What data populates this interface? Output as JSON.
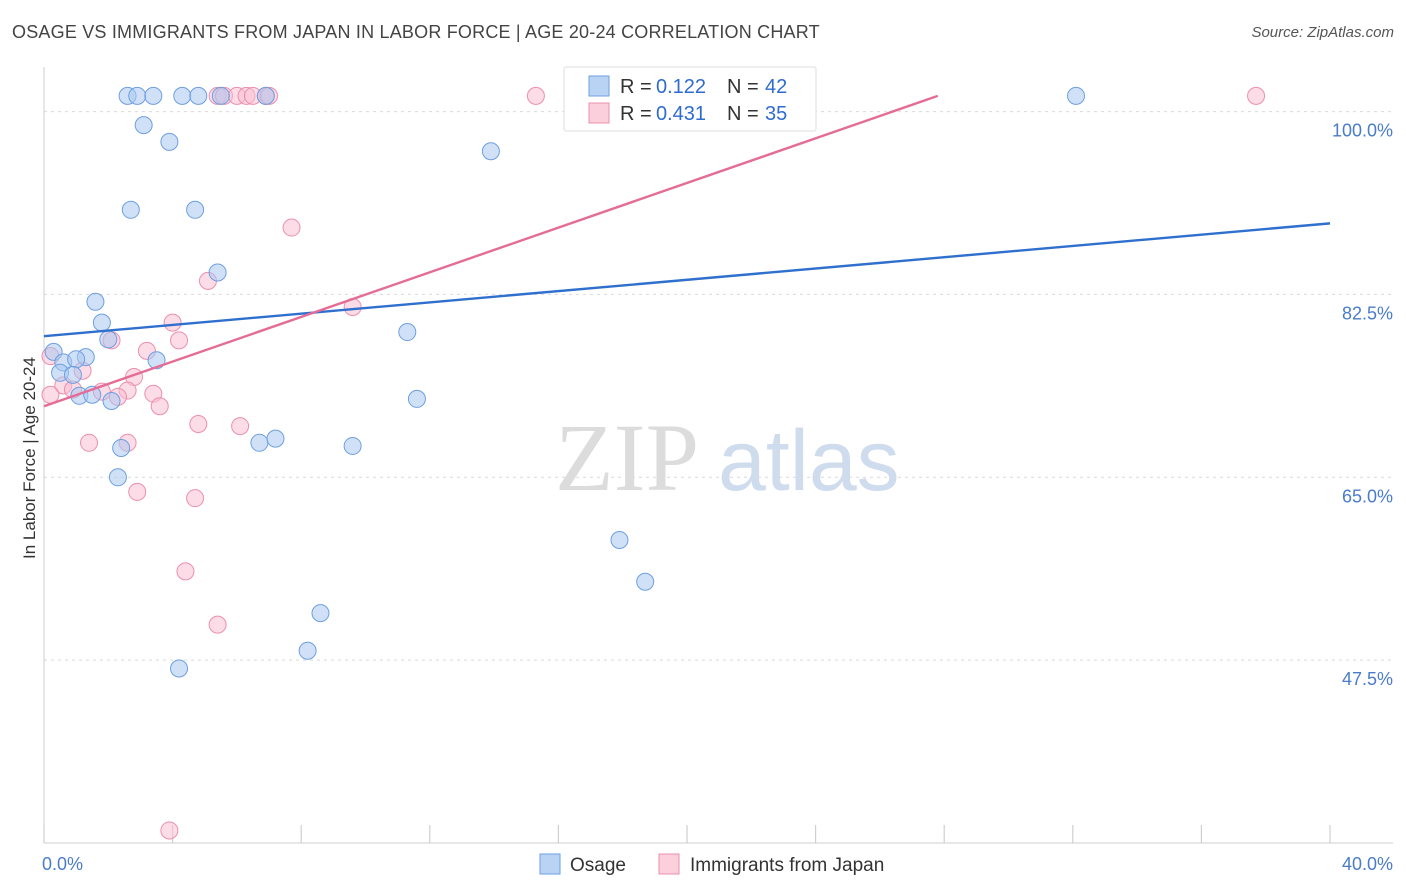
{
  "title": "OSAGE VS IMMIGRANTS FROM JAPAN IN LABOR FORCE | AGE 20-24 CORRELATION CHART",
  "source": "Source: ZipAtlas.com",
  "watermark": {
    "zip": "ZIP",
    "atlas": "atlas"
  },
  "chart_data": {
    "type": "scatter",
    "title": "OSAGE VS IMMIGRANTS FROM JAPAN IN LABOR FORCE | AGE 20-24 CORRELATION CHART",
    "xlabel": "",
    "ylabel": "In Labor Force | Age 20-24",
    "xlim": [
      0,
      40
    ],
    "ylim": [
      30,
      103.5
    ],
    "x_tick_labels": {
      "min": "0.0%",
      "max": "40.0%"
    },
    "y_ticks": [
      {
        "value": 47.5,
        "label": "47.5%"
      },
      {
        "value": 65.0,
        "label": "65.0%"
      },
      {
        "value": 82.5,
        "label": "82.5%"
      },
      {
        "value": 100.0,
        "label": "100.0%"
      }
    ],
    "series": [
      {
        "name": "Osage",
        "color": "#a9c8f0",
        "stroke": "#6e9fe0",
        "line_color": "#2f6fce",
        "R": "0.122",
        "N": "42",
        "trend": {
          "x": [
            0,
            40
          ],
          "y": [
            78.5,
            89.3
          ]
        },
        "points": [
          [
            2.6,
            101.5
          ],
          [
            2.9,
            101.5
          ],
          [
            3.4,
            101.5
          ],
          [
            4.3,
            101.5
          ],
          [
            4.8,
            101.5
          ],
          [
            5.5,
            101.5
          ],
          [
            6.9,
            101.5
          ],
          [
            23.5,
            101.5
          ],
          [
            32.1,
            101.5
          ],
          [
            3.1,
            98.7
          ],
          [
            3.9,
            97.1
          ],
          [
            13.9,
            96.2
          ],
          [
            2.7,
            90.6
          ],
          [
            4.7,
            90.6
          ],
          [
            5.4,
            84.6
          ],
          [
            1.6,
            81.8
          ],
          [
            1.8,
            79.8
          ],
          [
            2.0,
            78.2
          ],
          [
            11.3,
            78.9
          ],
          [
            0.3,
            77.0
          ],
          [
            1.3,
            76.5
          ],
          [
            0.6,
            76.0
          ],
          [
            1.0,
            76.3
          ],
          [
            0.5,
            75.0
          ],
          [
            0.9,
            74.8
          ],
          [
            3.5,
            76.2
          ],
          [
            1.1,
            72.8
          ],
          [
            1.5,
            72.9
          ],
          [
            2.1,
            72.3
          ],
          [
            11.6,
            72.5
          ],
          [
            2.4,
            67.8
          ],
          [
            6.7,
            68.3
          ],
          [
            7.2,
            68.7
          ],
          [
            9.6,
            68.0
          ],
          [
            2.3,
            65.0
          ],
          [
            17.9,
            59.0
          ],
          [
            18.7,
            55.0
          ],
          [
            8.6,
            52.0
          ],
          [
            8.2,
            48.4
          ],
          [
            4.2,
            46.7
          ]
        ]
      },
      {
        "name": "Immigrants from Japan",
        "color": "#f9bfd1",
        "stroke": "#ec8fae",
        "line_color": "#e46c96",
        "R": "0.431",
        "N": "35",
        "trend": {
          "x": [
            0,
            27.8
          ],
          "y": [
            71.8,
            101.5
          ]
        },
        "points": [
          [
            5.4,
            101.5
          ],
          [
            5.6,
            101.5
          ],
          [
            6.0,
            101.5
          ],
          [
            6.3,
            101.5
          ],
          [
            6.5,
            101.5
          ],
          [
            6.9,
            101.5
          ],
          [
            7.0,
            101.5
          ],
          [
            15.3,
            101.5
          ],
          [
            37.7,
            101.5
          ],
          [
            7.7,
            88.9
          ],
          [
            5.1,
            83.8
          ],
          [
            9.6,
            81.3
          ],
          [
            4.0,
            79.8
          ],
          [
            4.2,
            78.1
          ],
          [
            2.1,
            78.1
          ],
          [
            3.2,
            77.1
          ],
          [
            0.2,
            76.6
          ],
          [
            1.2,
            75.2
          ],
          [
            2.8,
            74.6
          ],
          [
            0.6,
            73.8
          ],
          [
            0.9,
            73.4
          ],
          [
            1.8,
            73.2
          ],
          [
            2.6,
            73.3
          ],
          [
            3.4,
            73.0
          ],
          [
            2.3,
            72.7
          ],
          [
            0.2,
            72.9
          ],
          [
            3.6,
            71.8
          ],
          [
            4.8,
            70.1
          ],
          [
            6.1,
            69.9
          ],
          [
            1.4,
            68.3
          ],
          [
            2.6,
            68.3
          ],
          [
            2.9,
            63.6
          ],
          [
            4.7,
            63.0
          ],
          [
            4.4,
            56.0
          ],
          [
            5.4,
            50.9
          ],
          [
            3.9,
            31.2
          ]
        ]
      }
    ]
  },
  "legend": {
    "r_label": "R =",
    "n_label": "N =",
    "bottom": [
      "Osage",
      "Immigrants from Japan"
    ]
  }
}
